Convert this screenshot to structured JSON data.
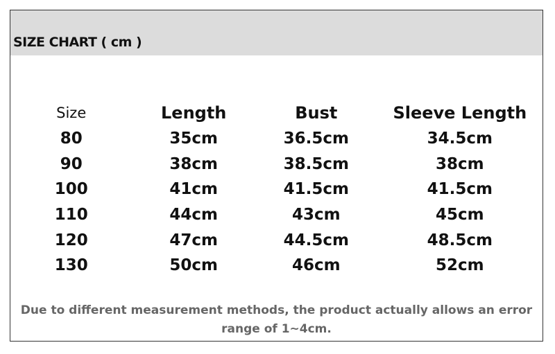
{
  "title": "SIZE CHART ( cm )",
  "table": {
    "headers": [
      "Size",
      "Length",
      "Bust",
      "Sleeve Length"
    ],
    "rows": [
      [
        "80",
        "35cm",
        "36.5cm",
        "34.5cm"
      ],
      [
        "90",
        "38cm",
        "38.5cm",
        "38cm"
      ],
      [
        "100",
        "41cm",
        "41.5cm",
        "41.5cm"
      ],
      [
        "110",
        "44cm",
        "43cm",
        "45cm"
      ],
      [
        "120",
        "47cm",
        "44.5cm",
        "48.5cm"
      ],
      [
        "130",
        "50cm",
        "46cm",
        "52cm"
      ]
    ]
  },
  "note": {
    "line1": "Due to different measurement methods, the product actually allows an error",
    "line2": "range of 1~4cm."
  }
}
